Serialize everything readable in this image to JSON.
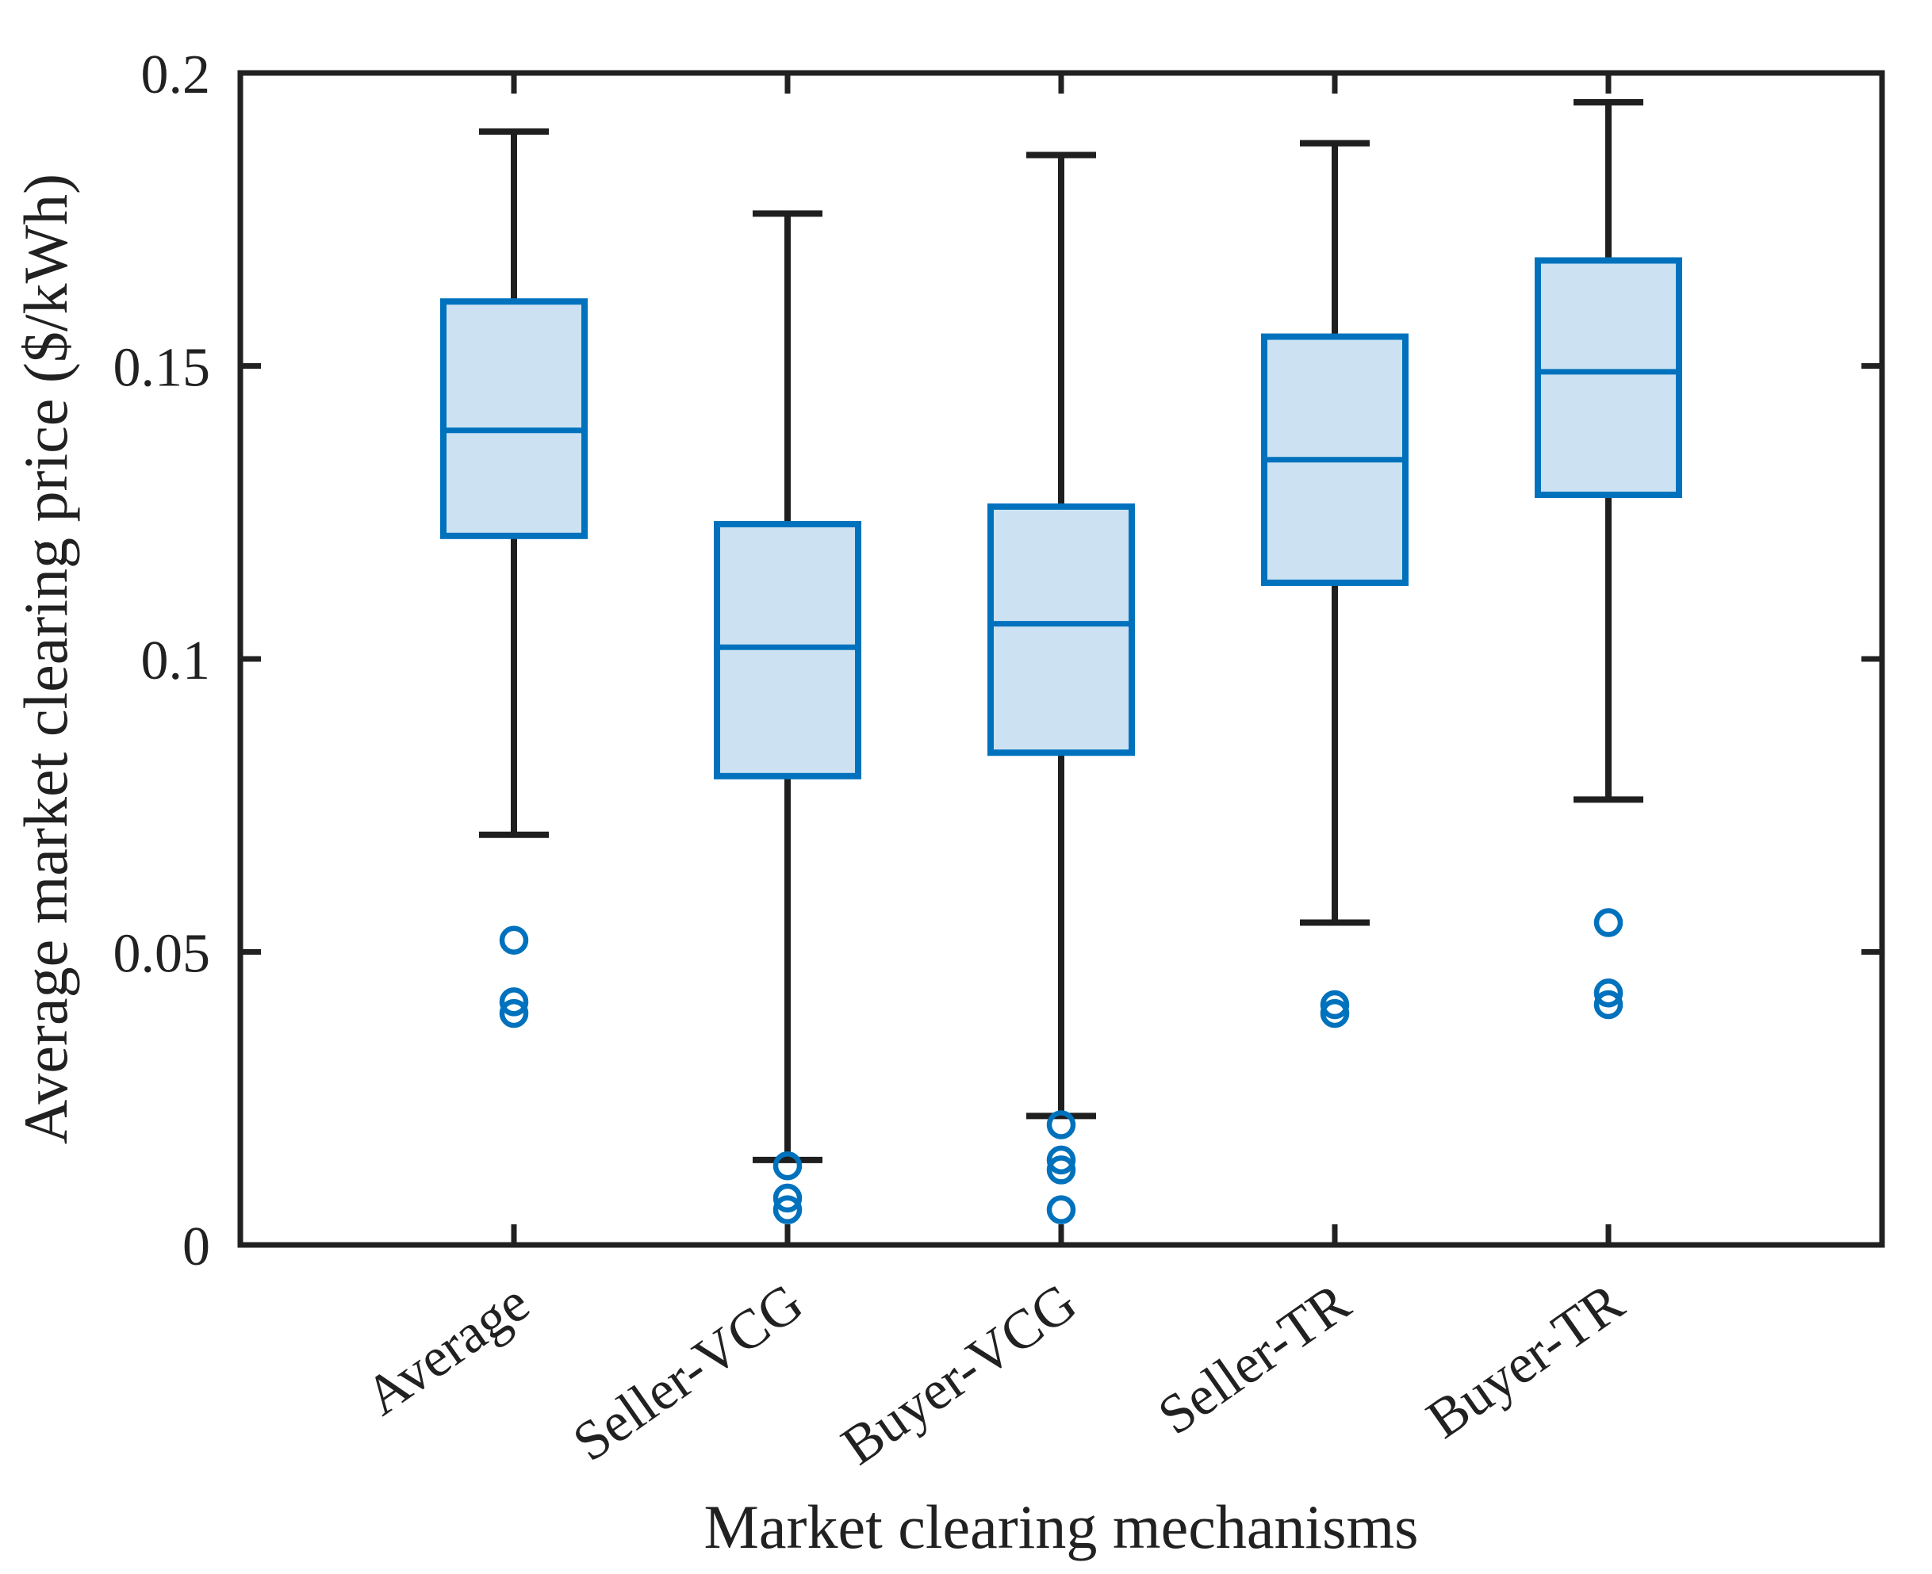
{
  "figure": {
    "xlabel": "Market clearing mechanisms",
    "ylabel": "Average market clearing price ($/kWh)"
  },
  "chart_data": {
    "type": "box",
    "title": "",
    "xlabel": "Market clearing mechanisms",
    "ylabel": "Average market clearing price ($/kWh)",
    "ylim": [
      0,
      0.2
    ],
    "yticks": [
      0,
      0.05,
      0.1,
      0.15,
      0.2
    ],
    "ytick_labels": [
      "0",
      "0.05",
      "0.1",
      "0.15",
      "0.2"
    ],
    "grid": false,
    "legend": null,
    "xtick_rotation_deg": -35,
    "categories": [
      "Average",
      "Seller-VCG",
      "Buyer-VCG",
      "Seller-TR",
      "Buyer-TR"
    ],
    "series": [
      {
        "name": "Average",
        "whisker_low": 0.07,
        "q1": 0.121,
        "median": 0.139,
        "q3": 0.161,
        "whisker_high": 0.19,
        "outliers": [
          0.052,
          0.0415,
          0.0395
        ]
      },
      {
        "name": "Seller-VCG",
        "whisker_low": 0.0145,
        "q1": 0.08,
        "median": 0.102,
        "q3": 0.123,
        "whisker_high": 0.176,
        "outliers": [
          0.0135,
          0.008,
          0.006
        ]
      },
      {
        "name": "Buyer-VCG",
        "whisker_low": 0.022,
        "q1": 0.084,
        "median": 0.106,
        "q3": 0.126,
        "whisker_high": 0.186,
        "outliers": [
          0.0205,
          0.0145,
          0.0128,
          0.006
        ]
      },
      {
        "name": "Seller-TR",
        "whisker_low": 0.055,
        "q1": 0.113,
        "median": 0.134,
        "q3": 0.155,
        "whisker_high": 0.188,
        "outliers": [
          0.041,
          0.0395
        ]
      },
      {
        "name": "Buyer-TR",
        "whisker_low": 0.076,
        "q1": 0.128,
        "median": 0.149,
        "q3": 0.168,
        "whisker_high": 0.195,
        "outliers": [
          0.055,
          0.043,
          0.041
        ]
      }
    ],
    "colors": {
      "box_edge": "#0072bd",
      "box_fill": "#cce2f2",
      "median": "#0072bd",
      "whisker": "#1f1f1f",
      "outlier": "#0072bd",
      "axis": "#212121"
    }
  }
}
